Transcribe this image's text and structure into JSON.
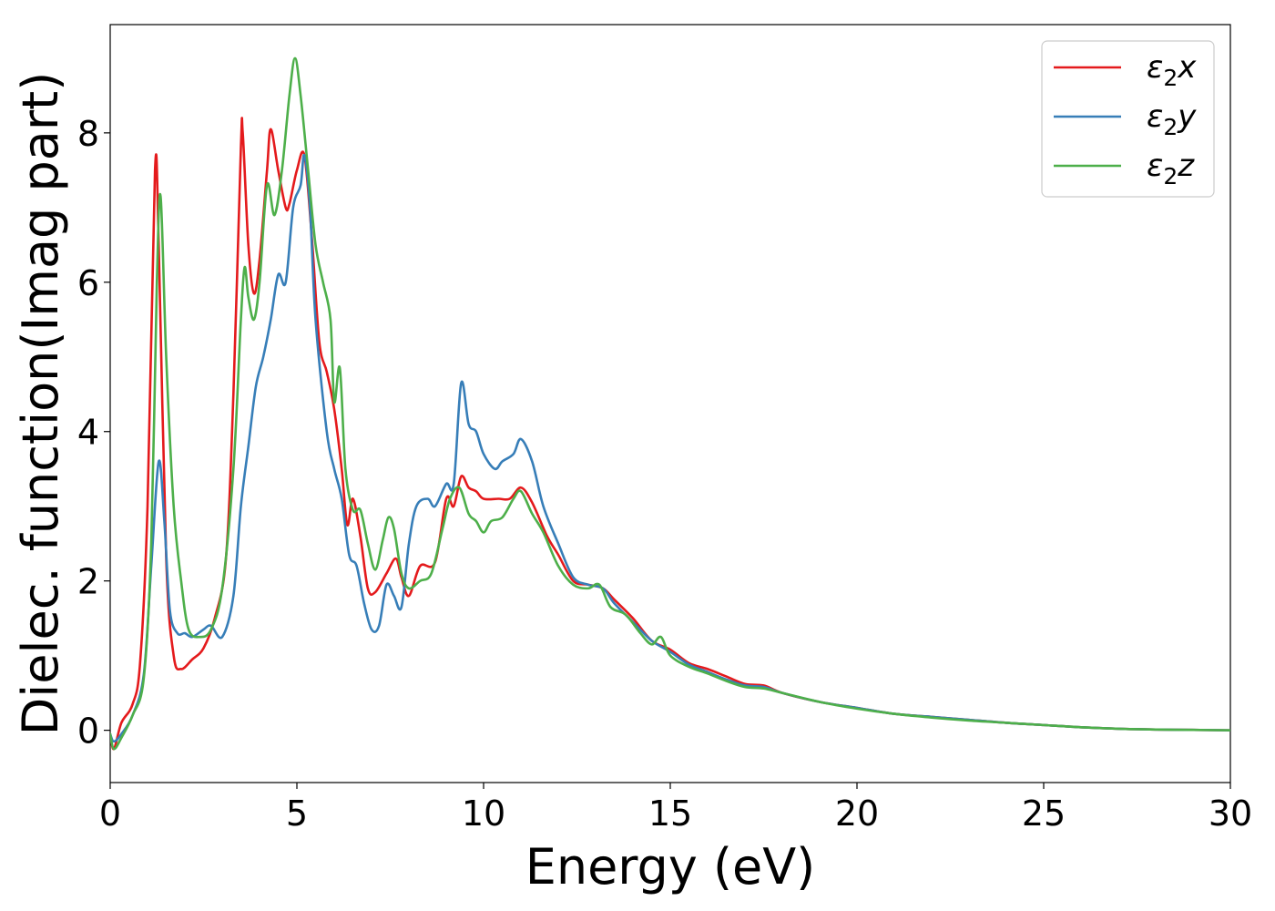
{
  "chart_data": {
    "type": "line",
    "title": "",
    "xlabel": "Energy (eV)",
    "ylabel": "Dielec. function(Imag part)",
    "xlim": [
      0,
      30
    ],
    "ylim": [
      -0.7,
      9.45
    ],
    "xticks": [
      0,
      5,
      10,
      15,
      20,
      25,
      30
    ],
    "xtick_labels": [
      "0",
      "5",
      "10",
      "15",
      "20",
      "25",
      "30"
    ],
    "yticks": [
      0,
      2,
      4,
      6,
      8
    ],
    "ytick_labels": [
      "0",
      "2",
      "4",
      "6",
      "8"
    ],
    "grid": false,
    "legend_position": "top-right",
    "series": [
      {
        "name": "ε2x",
        "legend": {
          "base": "ε",
          "sub": "2",
          "var": "x"
        },
        "color": "#e41a1c",
        "points": [
          [
            0,
            -0.05
          ],
          [
            0.1,
            -0.25
          ],
          [
            0.3,
            0.1
          ],
          [
            0.6,
            0.35
          ],
          [
            0.8,
            0.9
          ],
          [
            1.0,
            3.0
          ],
          [
            1.2,
            7.5
          ],
          [
            1.3,
            6.5
          ],
          [
            1.5,
            2.3
          ],
          [
            1.7,
            1.0
          ],
          [
            1.9,
            0.82
          ],
          [
            2.2,
            0.95
          ],
          [
            2.5,
            1.1
          ],
          [
            2.8,
            1.5
          ],
          [
            3.1,
            2.3
          ],
          [
            3.3,
            4.5
          ],
          [
            3.5,
            7.8
          ],
          [
            3.55,
            8.0
          ],
          [
            3.7,
            6.5
          ],
          [
            3.85,
            5.85
          ],
          [
            4.0,
            6.3
          ],
          [
            4.2,
            7.5
          ],
          [
            4.3,
            8.05
          ],
          [
            4.5,
            7.5
          ],
          [
            4.7,
            7.0
          ],
          [
            4.8,
            7.05
          ],
          [
            5.0,
            7.5
          ],
          [
            5.2,
            7.7
          ],
          [
            5.4,
            6.6
          ],
          [
            5.6,
            5.2
          ],
          [
            5.8,
            4.8
          ],
          [
            6.0,
            4.3
          ],
          [
            6.2,
            3.5
          ],
          [
            6.35,
            2.75
          ],
          [
            6.5,
            3.1
          ],
          [
            6.7,
            2.6
          ],
          [
            6.9,
            1.9
          ],
          [
            7.1,
            1.85
          ],
          [
            7.4,
            2.1
          ],
          [
            7.65,
            2.3
          ],
          [
            7.8,
            2.05
          ],
          [
            8.0,
            1.8
          ],
          [
            8.3,
            2.2
          ],
          [
            8.7,
            2.25
          ],
          [
            9.0,
            3.1
          ],
          [
            9.2,
            3.0
          ],
          [
            9.4,
            3.4
          ],
          [
            9.6,
            3.25
          ],
          [
            9.8,
            3.2
          ],
          [
            10.0,
            3.1
          ],
          [
            10.4,
            3.1
          ],
          [
            10.7,
            3.1
          ],
          [
            11.0,
            3.25
          ],
          [
            11.3,
            3.05
          ],
          [
            11.7,
            2.6
          ],
          [
            12.0,
            2.35
          ],
          [
            12.4,
            2.0
          ],
          [
            12.8,
            1.95
          ],
          [
            13.2,
            1.9
          ],
          [
            13.5,
            1.75
          ],
          [
            14.0,
            1.5
          ],
          [
            14.5,
            1.2
          ],
          [
            15.0,
            1.08
          ],
          [
            15.5,
            0.9
          ],
          [
            16.0,
            0.82
          ],
          [
            16.5,
            0.72
          ],
          [
            17.0,
            0.62
          ],
          [
            17.5,
            0.6
          ],
          [
            18.0,
            0.5
          ],
          [
            19.0,
            0.38
          ],
          [
            20.0,
            0.3
          ],
          [
            21.0,
            0.22
          ],
          [
            22.0,
            0.18
          ],
          [
            23.0,
            0.14
          ],
          [
            24.0,
            0.1
          ],
          [
            25.0,
            0.07
          ],
          [
            26.0,
            0.04
          ],
          [
            27.0,
            0.02
          ],
          [
            28.0,
            0.01
          ],
          [
            29.0,
            0.005
          ],
          [
            30.0,
            0.0
          ]
        ]
      },
      {
        "name": "ε2y",
        "legend": {
          "base": "ε",
          "sub": "2",
          "var": "y"
        },
        "color": "#377eb8",
        "points": [
          [
            0,
            -0.05
          ],
          [
            0.1,
            -0.15
          ],
          [
            0.3,
            -0.05
          ],
          [
            0.6,
            0.2
          ],
          [
            0.9,
            0.75
          ],
          [
            1.1,
            2.2
          ],
          [
            1.3,
            3.6
          ],
          [
            1.45,
            2.8
          ],
          [
            1.6,
            1.6
          ],
          [
            1.8,
            1.3
          ],
          [
            2.0,
            1.3
          ],
          [
            2.2,
            1.25
          ],
          [
            2.5,
            1.35
          ],
          [
            2.7,
            1.4
          ],
          [
            3.0,
            1.25
          ],
          [
            3.3,
            1.8
          ],
          [
            3.5,
            3.0
          ],
          [
            3.7,
            3.8
          ],
          [
            3.9,
            4.6
          ],
          [
            4.1,
            5.0
          ],
          [
            4.3,
            5.5
          ],
          [
            4.5,
            6.1
          ],
          [
            4.7,
            6.0
          ],
          [
            4.9,
            7.0
          ],
          [
            5.1,
            7.3
          ],
          [
            5.2,
            7.7
          ],
          [
            5.35,
            7.0
          ],
          [
            5.5,
            5.5
          ],
          [
            5.8,
            4.0
          ],
          [
            6.0,
            3.5
          ],
          [
            6.2,
            3.1
          ],
          [
            6.4,
            2.35
          ],
          [
            6.6,
            2.2
          ],
          [
            6.8,
            1.7
          ],
          [
            7.0,
            1.35
          ],
          [
            7.2,
            1.4
          ],
          [
            7.4,
            1.95
          ],
          [
            7.6,
            1.8
          ],
          [
            7.8,
            1.65
          ],
          [
            8.0,
            2.5
          ],
          [
            8.2,
            3.0
          ],
          [
            8.5,
            3.1
          ],
          [
            8.7,
            3.0
          ],
          [
            9.0,
            3.3
          ],
          [
            9.2,
            3.3
          ],
          [
            9.4,
            4.65
          ],
          [
            9.6,
            4.1
          ],
          [
            9.8,
            4.0
          ],
          [
            10.0,
            3.7
          ],
          [
            10.3,
            3.5
          ],
          [
            10.5,
            3.6
          ],
          [
            10.8,
            3.7
          ],
          [
            11.0,
            3.9
          ],
          [
            11.3,
            3.6
          ],
          [
            11.6,
            3.0
          ],
          [
            12.0,
            2.5
          ],
          [
            12.4,
            2.05
          ],
          [
            12.8,
            1.95
          ],
          [
            13.2,
            1.9
          ],
          [
            13.5,
            1.7
          ],
          [
            14.0,
            1.45
          ],
          [
            14.5,
            1.2
          ],
          [
            15.0,
            1.05
          ],
          [
            15.5,
            0.88
          ],
          [
            16.0,
            0.78
          ],
          [
            16.5,
            0.68
          ],
          [
            17.0,
            0.6
          ],
          [
            17.5,
            0.58
          ],
          [
            18.0,
            0.5
          ],
          [
            19.0,
            0.38
          ],
          [
            20.0,
            0.3
          ],
          [
            21.0,
            0.22
          ],
          [
            22.0,
            0.18
          ],
          [
            23.0,
            0.14
          ],
          [
            24.0,
            0.1
          ],
          [
            25.0,
            0.07
          ],
          [
            26.0,
            0.04
          ],
          [
            27.0,
            0.02
          ],
          [
            28.0,
            0.01
          ],
          [
            29.0,
            0.005
          ],
          [
            30.0,
            0.0
          ]
        ]
      },
      {
        "name": "ε2z",
        "legend": {
          "base": "ε",
          "sub": "2",
          "var": "z"
        },
        "color": "#4daf4a",
        "points": [
          [
            0,
            -0.05
          ],
          [
            0.1,
            -0.25
          ],
          [
            0.3,
            -0.1
          ],
          [
            0.6,
            0.2
          ],
          [
            0.9,
            0.7
          ],
          [
            1.1,
            2.5
          ],
          [
            1.25,
            6.0
          ],
          [
            1.35,
            7.15
          ],
          [
            1.5,
            5.0
          ],
          [
            1.7,
            3.0
          ],
          [
            1.9,
            2.0
          ],
          [
            2.1,
            1.35
          ],
          [
            2.4,
            1.25
          ],
          [
            2.7,
            1.35
          ],
          [
            3.0,
            1.9
          ],
          [
            3.3,
            3.5
          ],
          [
            3.5,
            5.5
          ],
          [
            3.6,
            6.2
          ],
          [
            3.7,
            5.8
          ],
          [
            3.85,
            5.5
          ],
          [
            4.0,
            6.0
          ],
          [
            4.2,
            7.3
          ],
          [
            4.4,
            6.9
          ],
          [
            4.6,
            7.5
          ],
          [
            4.8,
            8.5
          ],
          [
            4.95,
            9.0
          ],
          [
            5.1,
            8.5
          ],
          [
            5.3,
            7.5
          ],
          [
            5.5,
            6.5
          ],
          [
            5.7,
            6.0
          ],
          [
            5.9,
            5.5
          ],
          [
            6.0,
            4.4
          ],
          [
            6.15,
            4.85
          ],
          [
            6.3,
            3.5
          ],
          [
            6.5,
            2.95
          ],
          [
            6.7,
            2.95
          ],
          [
            6.9,
            2.5
          ],
          [
            7.1,
            2.15
          ],
          [
            7.3,
            2.55
          ],
          [
            7.45,
            2.85
          ],
          [
            7.6,
            2.7
          ],
          [
            7.8,
            2.1
          ],
          [
            8.0,
            1.9
          ],
          [
            8.3,
            2.0
          ],
          [
            8.6,
            2.1
          ],
          [
            8.9,
            2.7
          ],
          [
            9.1,
            3.1
          ],
          [
            9.35,
            3.25
          ],
          [
            9.6,
            2.9
          ],
          [
            9.8,
            2.8
          ],
          [
            10.0,
            2.65
          ],
          [
            10.2,
            2.8
          ],
          [
            10.5,
            2.85
          ],
          [
            10.8,
            3.1
          ],
          [
            11.0,
            3.2
          ],
          [
            11.3,
            2.9
          ],
          [
            11.6,
            2.65
          ],
          [
            12.0,
            2.2
          ],
          [
            12.4,
            1.95
          ],
          [
            12.8,
            1.9
          ],
          [
            13.1,
            1.95
          ],
          [
            13.4,
            1.65
          ],
          [
            13.8,
            1.55
          ],
          [
            14.2,
            1.3
          ],
          [
            14.5,
            1.15
          ],
          [
            14.75,
            1.25
          ],
          [
            15.0,
            1.0
          ],
          [
            15.5,
            0.85
          ],
          [
            16.0,
            0.76
          ],
          [
            16.5,
            0.66
          ],
          [
            17.0,
            0.58
          ],
          [
            17.5,
            0.56
          ],
          [
            18.0,
            0.5
          ],
          [
            19.0,
            0.38
          ],
          [
            20.0,
            0.29
          ],
          [
            21.0,
            0.22
          ],
          [
            22.0,
            0.17
          ],
          [
            23.0,
            0.13
          ],
          [
            24.0,
            0.1
          ],
          [
            25.0,
            0.07
          ],
          [
            26.0,
            0.04
          ],
          [
            27.0,
            0.02
          ],
          [
            28.0,
            0.01
          ],
          [
            29.0,
            0.005
          ],
          [
            30.0,
            0.0
          ]
        ]
      }
    ]
  }
}
